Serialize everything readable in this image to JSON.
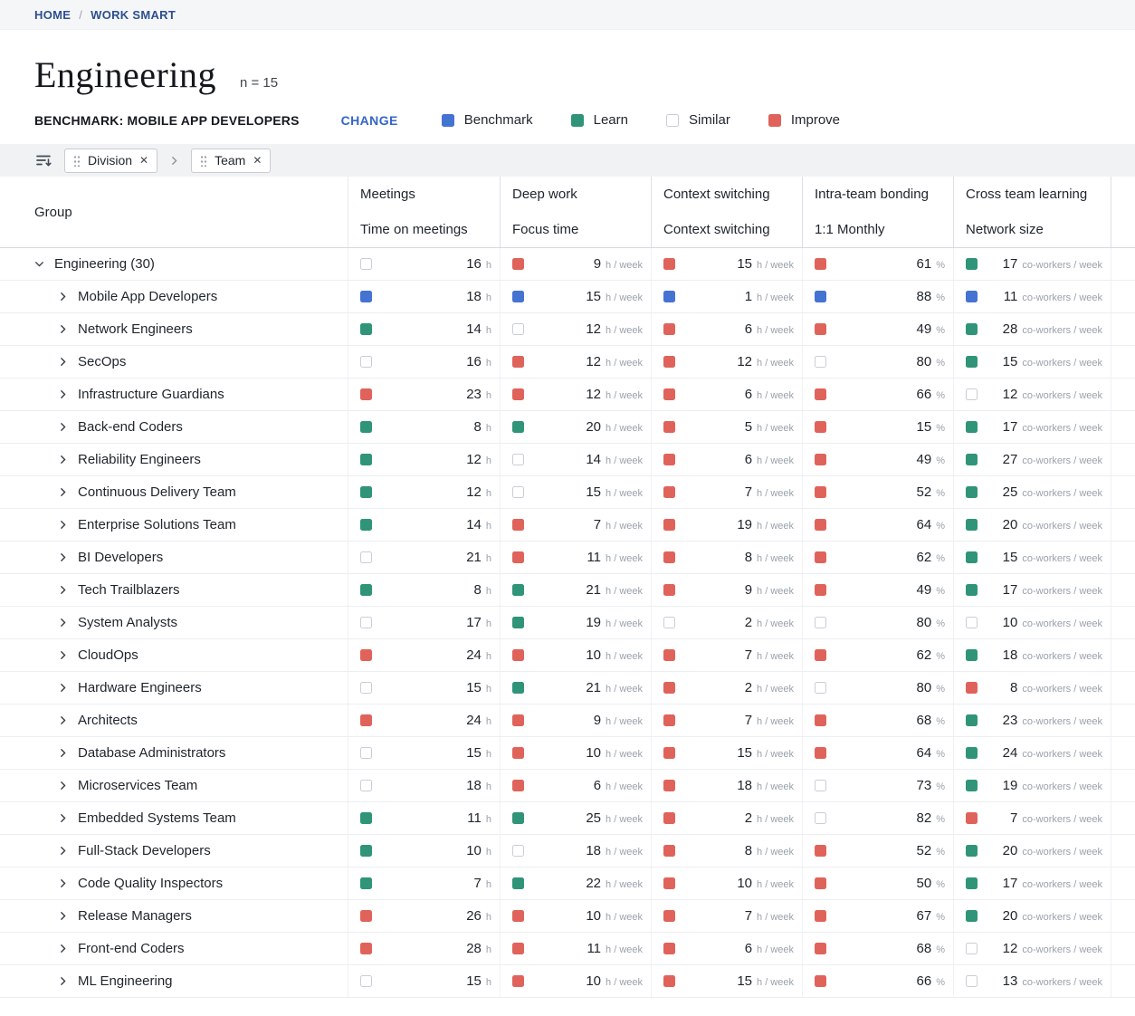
{
  "breadcrumb": {
    "home": "HOME",
    "separator": "/",
    "current": "WORK SMART"
  },
  "header": {
    "title": "Engineering",
    "n_label": "n = 15"
  },
  "benchmark": {
    "label": "BENCHMARK: MOBILE APP DEVELOPERS",
    "change_label": "CHANGE"
  },
  "legend": {
    "items": [
      {
        "label": "Benchmark",
        "key": "benchmark"
      },
      {
        "label": "Learn",
        "key": "learn"
      },
      {
        "label": "Similar",
        "key": "similar"
      },
      {
        "label": "Improve",
        "key": "improve"
      }
    ]
  },
  "colors": {
    "benchmark": "#4573d2",
    "learn": "#309478",
    "similar": "#ffffff",
    "similar_border": "#c9ced6",
    "improve": "#e0635b"
  },
  "filters": {
    "chips": [
      {
        "label": "Division"
      },
      {
        "label": "Team"
      }
    ],
    "close_glyph": "✕"
  },
  "table": {
    "group_header": "Group",
    "columns": [
      {
        "category": "Meetings",
        "metric": "Time on meetings",
        "unit": "h"
      },
      {
        "category": "Deep work",
        "metric": "Focus time",
        "unit": "h / week"
      },
      {
        "category": "Context switching",
        "metric": "Context switching",
        "unit": "h / week"
      },
      {
        "category": "Intra-team bonding",
        "metric": "1:1 Monthly",
        "unit": "%"
      },
      {
        "category": "Cross team learning",
        "metric": "Network size",
        "unit": "co-workers / week"
      }
    ],
    "rows": [
      {
        "group": "Engineering (30)",
        "level": 0,
        "expanded": true,
        "cells": [
          {
            "v": "16",
            "c": "similar"
          },
          {
            "v": "9",
            "c": "improve"
          },
          {
            "v": "15",
            "c": "improve"
          },
          {
            "v": "61",
            "c": "improve"
          },
          {
            "v": "17",
            "c": "learn"
          }
        ]
      },
      {
        "group": "Mobile App Developers",
        "level": 1,
        "expanded": false,
        "cells": [
          {
            "v": "18",
            "c": "benchmark"
          },
          {
            "v": "15",
            "c": "benchmark"
          },
          {
            "v": "1",
            "c": "benchmark"
          },
          {
            "v": "88",
            "c": "benchmark"
          },
          {
            "v": "11",
            "c": "benchmark"
          }
        ]
      },
      {
        "group": "Network Engineers",
        "level": 1,
        "expanded": false,
        "cells": [
          {
            "v": "14",
            "c": "learn"
          },
          {
            "v": "12",
            "c": "similar"
          },
          {
            "v": "6",
            "c": "improve"
          },
          {
            "v": "49",
            "c": "improve"
          },
          {
            "v": "28",
            "c": "learn"
          }
        ]
      },
      {
        "group": "SecOps",
        "level": 1,
        "expanded": false,
        "cells": [
          {
            "v": "16",
            "c": "similar"
          },
          {
            "v": "12",
            "c": "improve"
          },
          {
            "v": "12",
            "c": "improve"
          },
          {
            "v": "80",
            "c": "similar"
          },
          {
            "v": "15",
            "c": "learn"
          }
        ]
      },
      {
        "group": "Infrastructure Guardians",
        "level": 1,
        "expanded": false,
        "cells": [
          {
            "v": "23",
            "c": "improve"
          },
          {
            "v": "12",
            "c": "improve"
          },
          {
            "v": "6",
            "c": "improve"
          },
          {
            "v": "66",
            "c": "improve"
          },
          {
            "v": "12",
            "c": "similar"
          }
        ]
      },
      {
        "group": "Back-end Coders",
        "level": 1,
        "expanded": false,
        "cells": [
          {
            "v": "8",
            "c": "learn"
          },
          {
            "v": "20",
            "c": "learn"
          },
          {
            "v": "5",
            "c": "improve"
          },
          {
            "v": "15",
            "c": "improve"
          },
          {
            "v": "17",
            "c": "learn"
          }
        ]
      },
      {
        "group": "Reliability Engineers",
        "level": 1,
        "expanded": false,
        "cells": [
          {
            "v": "12",
            "c": "learn"
          },
          {
            "v": "14",
            "c": "similar"
          },
          {
            "v": "6",
            "c": "improve"
          },
          {
            "v": "49",
            "c": "improve"
          },
          {
            "v": "27",
            "c": "learn"
          }
        ]
      },
      {
        "group": "Continuous Delivery Team",
        "level": 1,
        "expanded": false,
        "cells": [
          {
            "v": "12",
            "c": "learn"
          },
          {
            "v": "15",
            "c": "similar"
          },
          {
            "v": "7",
            "c": "improve"
          },
          {
            "v": "52",
            "c": "improve"
          },
          {
            "v": "25",
            "c": "learn"
          }
        ]
      },
      {
        "group": "Enterprise Solutions Team",
        "level": 1,
        "expanded": false,
        "cells": [
          {
            "v": "14",
            "c": "learn"
          },
          {
            "v": "7",
            "c": "improve"
          },
          {
            "v": "19",
            "c": "improve"
          },
          {
            "v": "64",
            "c": "improve"
          },
          {
            "v": "20",
            "c": "learn"
          }
        ]
      },
      {
        "group": "BI Developers",
        "level": 1,
        "expanded": false,
        "cells": [
          {
            "v": "21",
            "c": "similar"
          },
          {
            "v": "11",
            "c": "improve"
          },
          {
            "v": "8",
            "c": "improve"
          },
          {
            "v": "62",
            "c": "improve"
          },
          {
            "v": "15",
            "c": "learn"
          }
        ]
      },
      {
        "group": "Tech Trailblazers",
        "level": 1,
        "expanded": false,
        "cells": [
          {
            "v": "8",
            "c": "learn"
          },
          {
            "v": "21",
            "c": "learn"
          },
          {
            "v": "9",
            "c": "improve"
          },
          {
            "v": "49",
            "c": "improve"
          },
          {
            "v": "17",
            "c": "learn"
          }
        ]
      },
      {
        "group": "System Analysts",
        "level": 1,
        "expanded": false,
        "cells": [
          {
            "v": "17",
            "c": "similar"
          },
          {
            "v": "19",
            "c": "learn"
          },
          {
            "v": "2",
            "c": "similar"
          },
          {
            "v": "80",
            "c": "similar"
          },
          {
            "v": "10",
            "c": "similar"
          }
        ]
      },
      {
        "group": "CloudOps",
        "level": 1,
        "expanded": false,
        "cells": [
          {
            "v": "24",
            "c": "improve"
          },
          {
            "v": "10",
            "c": "improve"
          },
          {
            "v": "7",
            "c": "improve"
          },
          {
            "v": "62",
            "c": "improve"
          },
          {
            "v": "18",
            "c": "learn"
          }
        ]
      },
      {
        "group": "Hardware Engineers",
        "level": 1,
        "expanded": false,
        "cells": [
          {
            "v": "15",
            "c": "similar"
          },
          {
            "v": "21",
            "c": "learn"
          },
          {
            "v": "2",
            "c": "improve"
          },
          {
            "v": "80",
            "c": "similar"
          },
          {
            "v": "8",
            "c": "improve"
          }
        ]
      },
      {
        "group": "Architects",
        "level": 1,
        "expanded": false,
        "cells": [
          {
            "v": "24",
            "c": "improve"
          },
          {
            "v": "9",
            "c": "improve"
          },
          {
            "v": "7",
            "c": "improve"
          },
          {
            "v": "68",
            "c": "improve"
          },
          {
            "v": "23",
            "c": "learn"
          }
        ]
      },
      {
        "group": "Database Administrators",
        "level": 1,
        "expanded": false,
        "cells": [
          {
            "v": "15",
            "c": "similar"
          },
          {
            "v": "10",
            "c": "improve"
          },
          {
            "v": "15",
            "c": "improve"
          },
          {
            "v": "64",
            "c": "improve"
          },
          {
            "v": "24",
            "c": "learn"
          }
        ]
      },
      {
        "group": "Microservices Team",
        "level": 1,
        "expanded": false,
        "cells": [
          {
            "v": "18",
            "c": "similar"
          },
          {
            "v": "6",
            "c": "improve"
          },
          {
            "v": "18",
            "c": "improve"
          },
          {
            "v": "73",
            "c": "similar"
          },
          {
            "v": "19",
            "c": "learn"
          }
        ]
      },
      {
        "group": "Embedded Systems Team",
        "level": 1,
        "expanded": false,
        "cells": [
          {
            "v": "11",
            "c": "learn"
          },
          {
            "v": "25",
            "c": "learn"
          },
          {
            "v": "2",
            "c": "improve"
          },
          {
            "v": "82",
            "c": "similar"
          },
          {
            "v": "7",
            "c": "improve"
          }
        ]
      },
      {
        "group": "Full-Stack Developers",
        "level": 1,
        "expanded": false,
        "cells": [
          {
            "v": "10",
            "c": "learn"
          },
          {
            "v": "18",
            "c": "similar"
          },
          {
            "v": "8",
            "c": "improve"
          },
          {
            "v": "52",
            "c": "improve"
          },
          {
            "v": "20",
            "c": "learn"
          }
        ]
      },
      {
        "group": "Code Quality Inspectors",
        "level": 1,
        "expanded": false,
        "cells": [
          {
            "v": "7",
            "c": "learn"
          },
          {
            "v": "22",
            "c": "learn"
          },
          {
            "v": "10",
            "c": "improve"
          },
          {
            "v": "50",
            "c": "improve"
          },
          {
            "v": "17",
            "c": "learn"
          }
        ]
      },
      {
        "group": "Release Managers",
        "level": 1,
        "expanded": false,
        "cells": [
          {
            "v": "26",
            "c": "improve"
          },
          {
            "v": "10",
            "c": "improve"
          },
          {
            "v": "7",
            "c": "improve"
          },
          {
            "v": "67",
            "c": "improve"
          },
          {
            "v": "20",
            "c": "learn"
          }
        ]
      },
      {
        "group": "Front-end Coders",
        "level": 1,
        "expanded": false,
        "cells": [
          {
            "v": "28",
            "c": "improve"
          },
          {
            "v": "11",
            "c": "improve"
          },
          {
            "v": "6",
            "c": "improve"
          },
          {
            "v": "68",
            "c": "improve"
          },
          {
            "v": "12",
            "c": "similar"
          }
        ]
      },
      {
        "group": "ML Engineering",
        "level": 1,
        "expanded": false,
        "cells": [
          {
            "v": "15",
            "c": "similar"
          },
          {
            "v": "10",
            "c": "improve"
          },
          {
            "v": "15",
            "c": "improve"
          },
          {
            "v": "66",
            "c": "improve"
          },
          {
            "v": "13",
            "c": "similar"
          }
        ]
      }
    ]
  }
}
